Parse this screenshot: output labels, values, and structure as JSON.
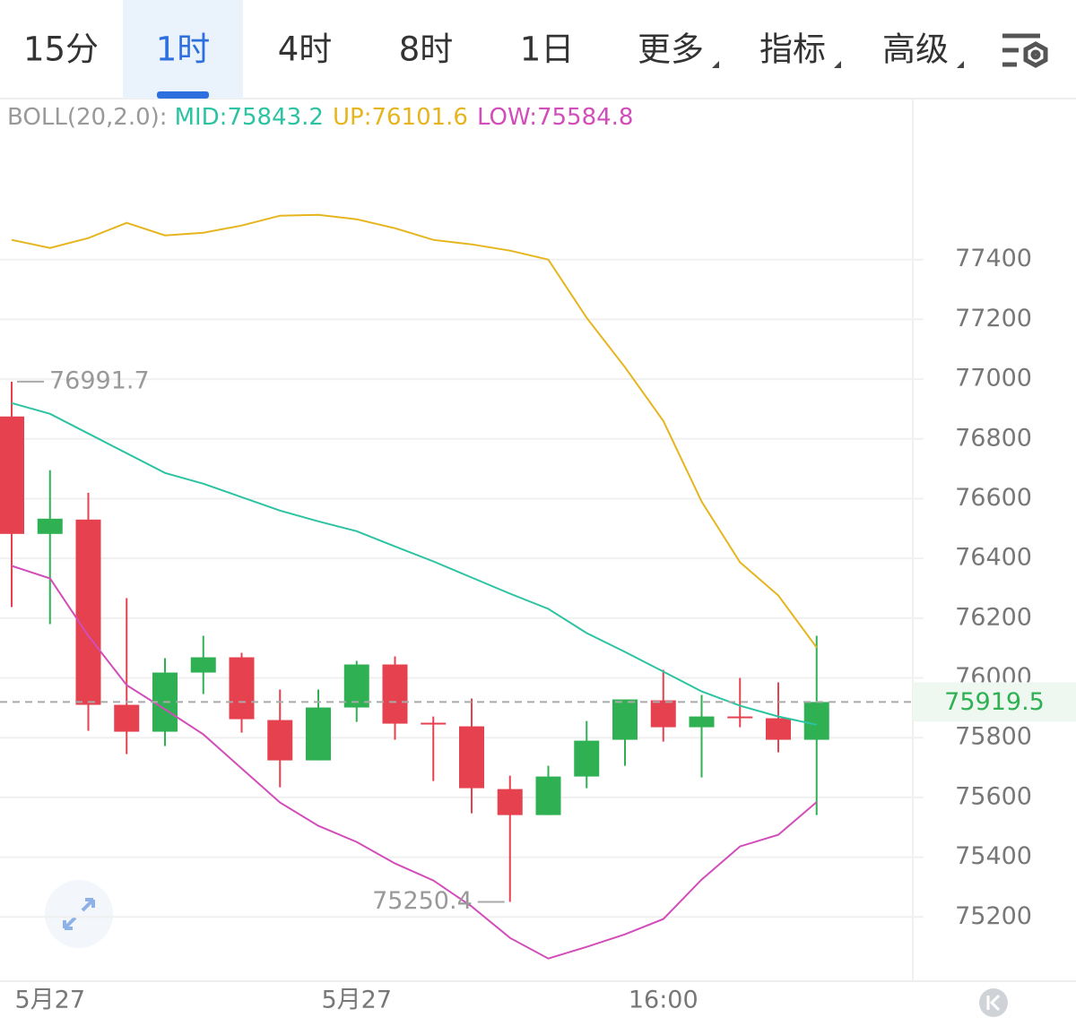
{
  "tabs": [
    {
      "label": "15分",
      "dropdown": false
    },
    {
      "label": "1时",
      "dropdown": false,
      "active": true
    },
    {
      "label": "4时",
      "dropdown": false
    },
    {
      "label": "8时",
      "dropdown": false
    },
    {
      "label": "1日",
      "dropdown": false
    },
    {
      "label": "更多",
      "dropdown": true
    },
    {
      "label": "指标",
      "dropdown": true
    },
    {
      "label": "高级",
      "dropdown": true
    }
  ],
  "chart_data": {
    "type": "candlestick",
    "categories": [
      null,
      "5月27",
      null,
      null,
      null,
      null,
      null,
      null,
      null,
      "5月27",
      null,
      null,
      null,
      null,
      null,
      null,
      null,
      "16:00",
      null,
      null,
      null,
      null
    ],
    "open": [
      76875,
      76482,
      76530,
      75910,
      75820,
      76018,
      76069,
      75859,
      75724,
      75901,
      76045,
      75850,
      75838,
      75628,
      75541,
      75670,
      75793,
      75925,
      75835,
      75871,
      75865,
      75793
    ],
    "high": [
      76991.7,
      76695,
      76620,
      76267,
      76066,
      76141,
      76084,
      75961,
      75961,
      76057,
      76072,
      75871,
      75931,
      75673,
      75706,
      75856,
      75928,
      76027,
      75943,
      76000,
      75985,
      76141
    ],
    "low": [
      76237,
      76180,
      75823,
      75745,
      75772,
      75946,
      75817,
      75634,
      75724,
      75853,
      75793,
      75655,
      75547,
      75250.4,
      75541,
      75631,
      75706,
      75787,
      75667,
      75835,
      75751,
      75541
    ],
    "close": [
      76482,
      76533,
      75910,
      75820,
      76018,
      76069,
      75862,
      75724,
      75901,
      76045,
      75847,
      75847,
      75631,
      75541,
      75670,
      75790,
      75928,
      75835,
      75871,
      75865,
      75793,
      75919.5
    ],
    "up_color": "#2fb153",
    "down_color": "#e5414e",
    "boll": {
      "label": "BOLL(20,2.0):",
      "lines": [
        {
          "name": "MID:",
          "color": "#2cc3a2",
          "values": [
            76920,
            76884,
            76818,
            76752,
            76686,
            76650,
            76605,
            76560,
            76524,
            76491,
            76440,
            76390,
            76336,
            76282,
            76231,
            76150,
            76087,
            76021,
            75955,
            75907,
            75871,
            75843.2
          ]
        },
        {
          "name": "UP:",
          "color": "#e6b51e",
          "values": [
            77466,
            77439,
            77472,
            77523,
            77481,
            77490,
            77514,
            77547,
            77550,
            77535,
            77505,
            77466,
            77451,
            77430,
            77400,
            77205,
            77040,
            76860,
            76590,
            76387,
            76276,
            76101.6
          ]
        },
        {
          "name": "LOW:",
          "color": "#d24db9",
          "values": [
            76375,
            76333,
            76141,
            75976,
            75895,
            75811,
            75697,
            75583,
            75505,
            75451,
            75379,
            75322,
            75235,
            75130,
            75061,
            75100,
            75142,
            75193,
            75325,
            75436,
            75475,
            75584.8
          ]
        }
      ]
    },
    "ylim": [
      75000,
      77900
    ],
    "yticks": [
      75200,
      75400,
      75600,
      75800,
      76000,
      76200,
      76400,
      76600,
      76800,
      77000,
      77200,
      77400
    ],
    "grid": true
  }
}
